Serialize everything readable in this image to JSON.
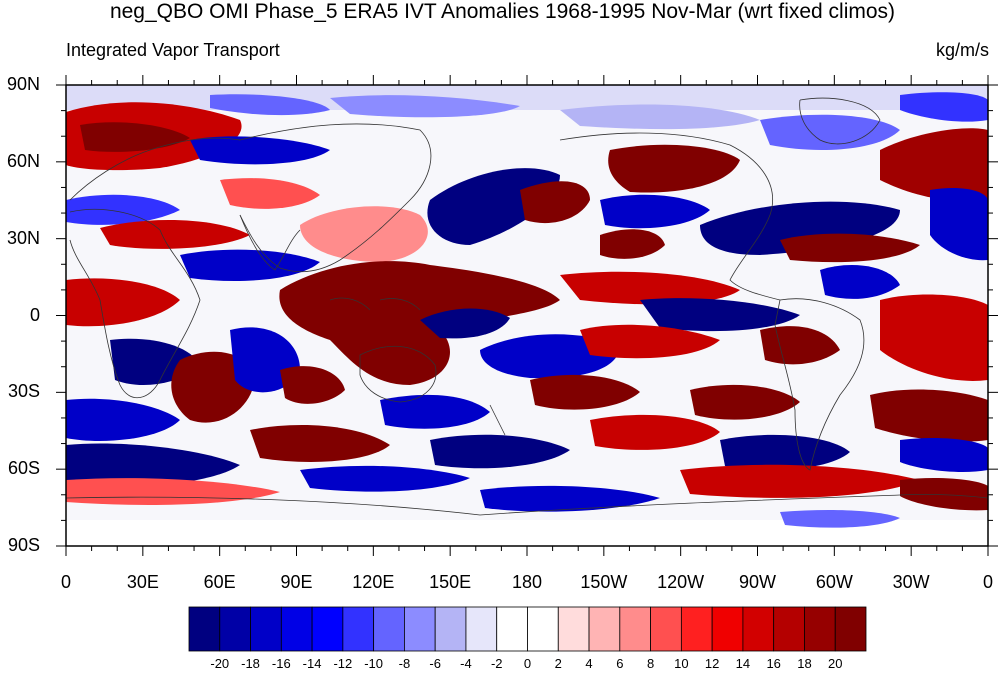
{
  "title": "neg_QBO OMI Phase_5 ERA5 IVT Anomalies 1968-1995 Nov-Mar (wrt fixed climos)",
  "left_string": "Integrated Vapor Transport",
  "right_string": "kg/m/s",
  "lat_labels": [
    "90N",
    "60N",
    "30N",
    "0",
    "30S",
    "60S",
    "90S"
  ],
  "lon_labels": [
    "0",
    "30E",
    "60E",
    "90E",
    "120E",
    "150E",
    "180",
    "150W",
    "120W",
    "90W",
    "60W",
    "30W",
    "0"
  ],
  "colorbar": {
    "labels": [
      "-20",
      "-18",
      "-16",
      "-14",
      "-12",
      "-10",
      "-8",
      "-6",
      "-4",
      "-2",
      "0",
      "2",
      "4",
      "6",
      "8",
      "10",
      "12",
      "14",
      "16",
      "18",
      "20"
    ],
    "colors": [
      "#000080",
      "#0000a6",
      "#0000c8",
      "#0000e6",
      "#0000ff",
      "#3232ff",
      "#6464ff",
      "#8c8cff",
      "#b4b4f5",
      "#e6e6fa",
      "#ffffff",
      "#ffffff",
      "#ffdcdc",
      "#ffb4b4",
      "#ff8c8c",
      "#ff5050",
      "#ff2020",
      "#f00000",
      "#d20000",
      "#b40000",
      "#960000",
      "#800000"
    ]
  },
  "colors": {
    "land_outline": "#333333",
    "frame": "#000000",
    "background": "#ffffff"
  }
}
